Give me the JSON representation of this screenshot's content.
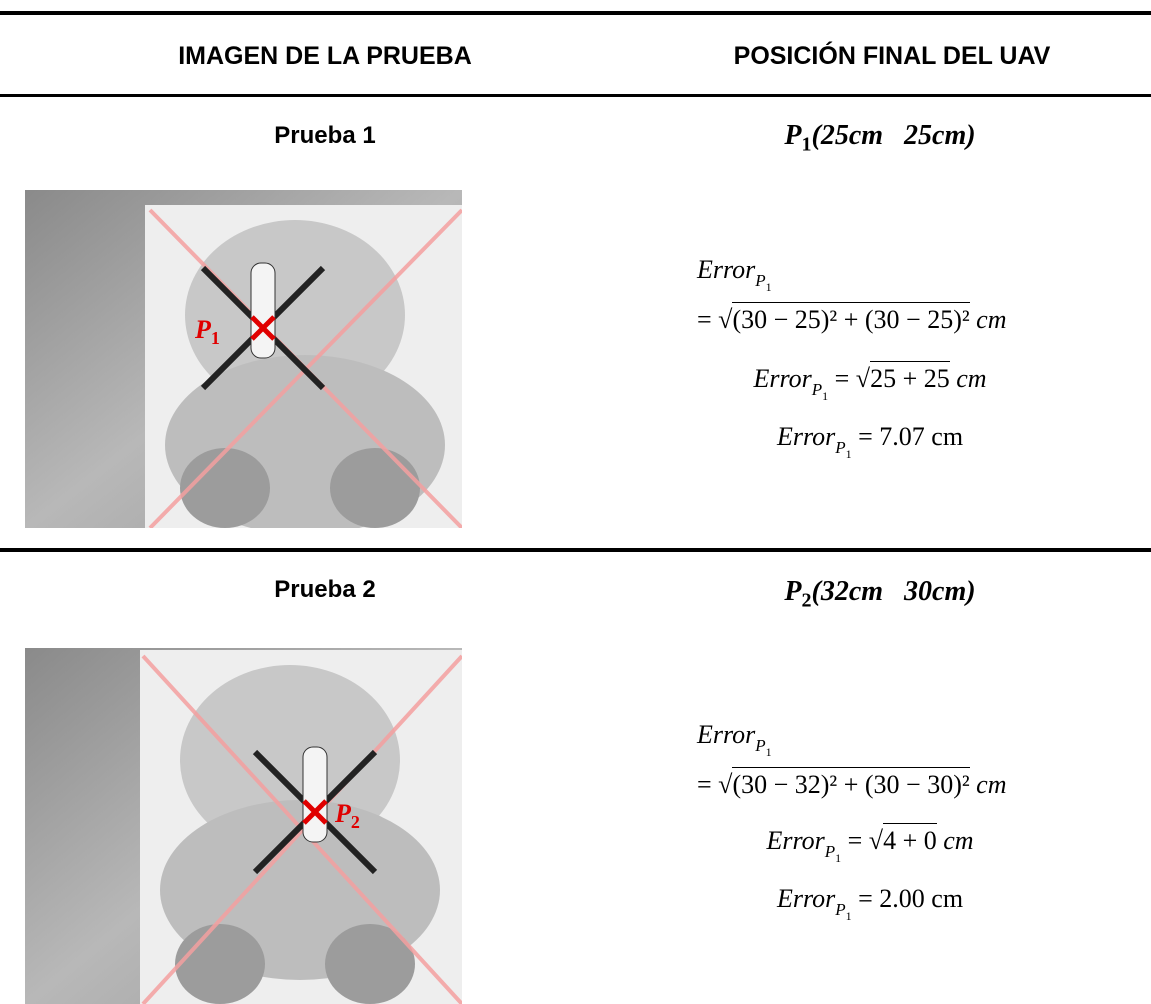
{
  "header": {
    "col1": "IMAGEN DE LA PRUEBA",
    "col2": "POSICIÓN FINAL DEL UAV"
  },
  "rows": [
    {
      "test": "Prueba 1",
      "position": {
        "label": "P",
        "sub": "1",
        "coords": "(25cm   25cm)"
      },
      "marker": {
        "label": "P",
        "sub": "1"
      },
      "error": {
        "name": "Error",
        "sub": "P",
        "subsub": "1",
        "eq": "=",
        "root": "√",
        "radicand_full": "(30 − 25)² + (30 − 25)²",
        "unit": "cm",
        "radicand_short": "25 + 25",
        "result": "7.07 cm"
      }
    },
    {
      "test": "Prueba 2",
      "position": {
        "label": "P",
        "sub": "2",
        "coords": "(32cm   30cm)"
      },
      "marker": {
        "label": "P",
        "sub": "2"
      },
      "error": {
        "name": "Error",
        "sub": "P",
        "subsub": "1",
        "eq": "=",
        "root": "√",
        "radicand_full": "(30 − 32)² + (30 − 30)²",
        "unit": "cm",
        "radicand_short": "4 + 0",
        "result": "2.00 cm"
      }
    }
  ]
}
